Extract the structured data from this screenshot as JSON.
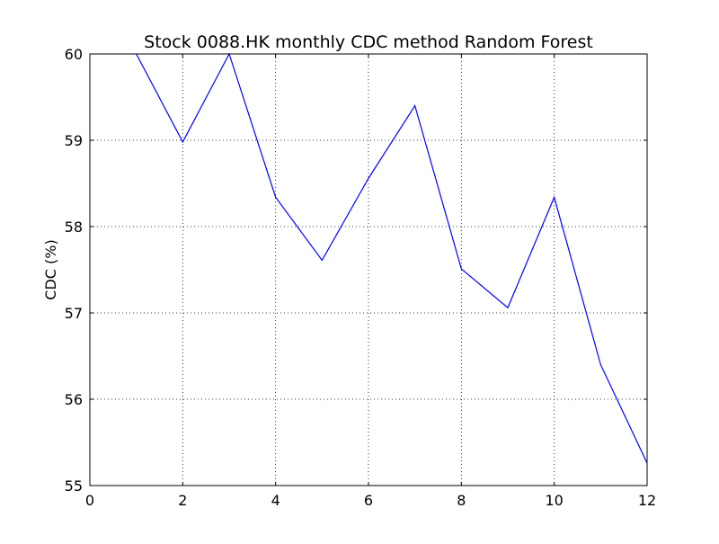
{
  "chart_data": {
    "type": "line",
    "title": "Stock 0088.HK monthly CDC method Random Forest",
    "xlabel": "",
    "ylabel": "CDC (%)",
    "xlim": [
      0,
      12
    ],
    "ylim": [
      55,
      60
    ],
    "xticks": [
      0,
      2,
      4,
      6,
      8,
      10,
      12
    ],
    "yticks": [
      55,
      56,
      57,
      58,
      59,
      60
    ],
    "grid": true,
    "series": [
      {
        "color": "#0000ff",
        "x": [
          1,
          2,
          3,
          4,
          5,
          6,
          7,
          8,
          9,
          10,
          11,
          12
        ],
        "y": [
          60.0,
          58.98,
          60.0,
          58.34,
          57.61,
          58.56,
          59.4,
          57.51,
          57.06,
          58.34,
          56.4,
          55.26
        ]
      }
    ]
  }
}
